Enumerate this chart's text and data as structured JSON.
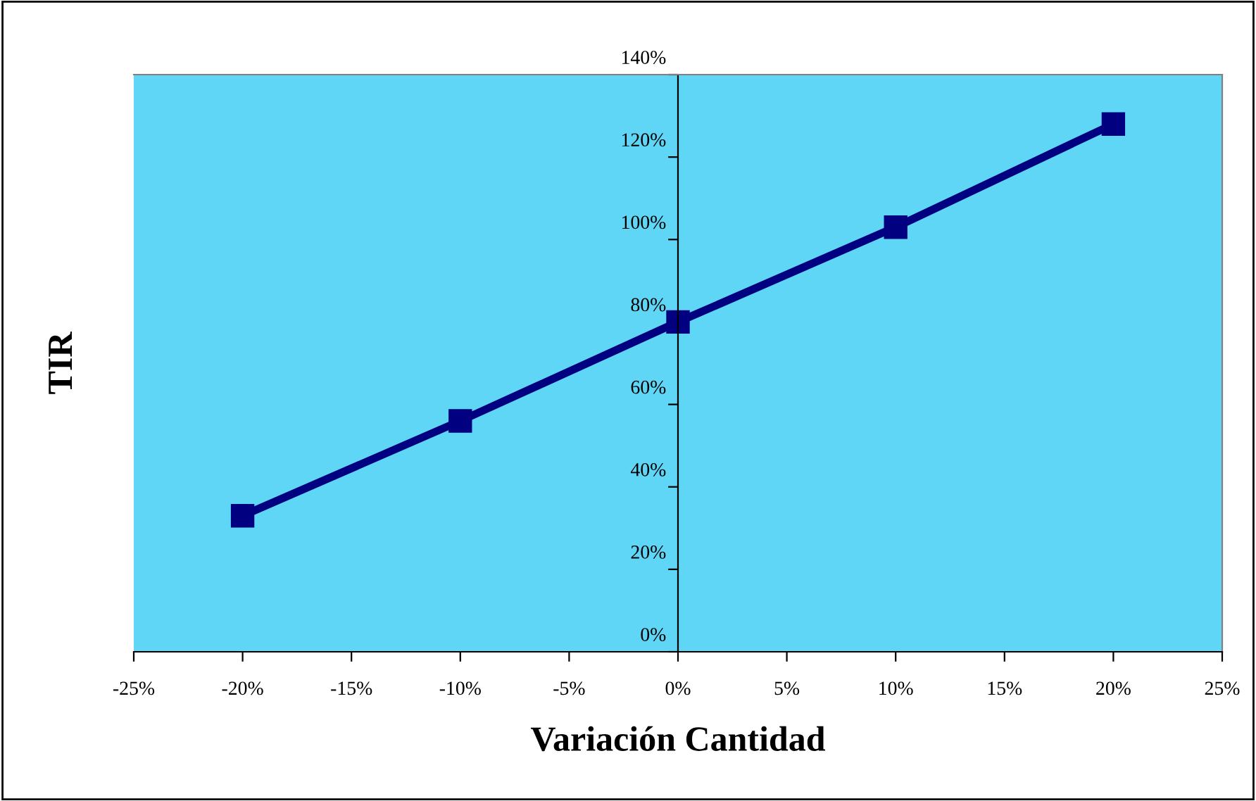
{
  "chart_data": {
    "type": "line",
    "xlabel": "Variación Cantidad",
    "ylabel": "TIR",
    "x": [
      -20,
      -10,
      0,
      10,
      20
    ],
    "series": [
      {
        "color": "#000080",
        "values": [
          33,
          56,
          80,
          103,
          128
        ]
      }
    ],
    "xlim": [
      -25,
      25
    ],
    "ylim": [
      0,
      140
    ],
    "xticks": [
      {
        "value": -25,
        "label": "-25%"
      },
      {
        "value": -20,
        "label": "-20%"
      },
      {
        "value": -15,
        "label": "-15%"
      },
      {
        "value": -10,
        "label": "-10%"
      },
      {
        "value": -5,
        "label": "-5%"
      },
      {
        "value": 0,
        "label": "0%"
      },
      {
        "value": 5,
        "label": "5%"
      },
      {
        "value": 10,
        "label": "10%"
      },
      {
        "value": 15,
        "label": "15%"
      },
      {
        "value": 20,
        "label": "20%"
      },
      {
        "value": 25,
        "label": "25%"
      }
    ],
    "yticks": [
      {
        "value": 0,
        "label": "0%"
      },
      {
        "value": 20,
        "label": "20%"
      },
      {
        "value": 40,
        "label": "40%"
      },
      {
        "value": 60,
        "label": "60%"
      },
      {
        "value": 80,
        "label": "80%"
      },
      {
        "value": 100,
        "label": "100%"
      },
      {
        "value": 120,
        "label": "120%"
      },
      {
        "value": 140,
        "label": "140%"
      }
    ],
    "marker": "square",
    "line_style": "solid",
    "grid": false,
    "legend": false
  }
}
